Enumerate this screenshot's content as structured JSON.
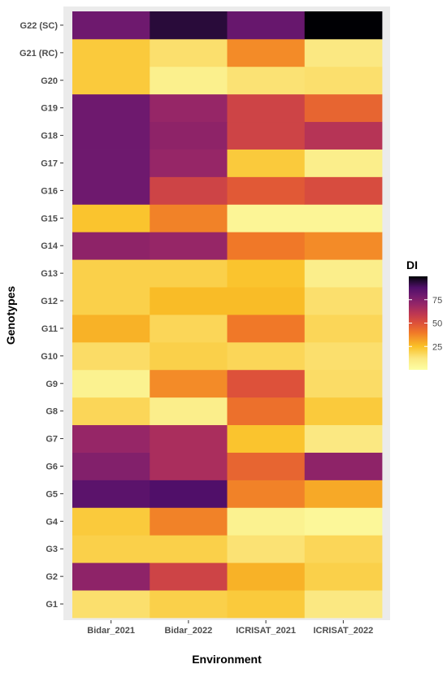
{
  "chart_data": {
    "type": "heatmap",
    "xlabel": "Environment",
    "ylabel": "Genotypes",
    "x_categories": [
      "Bidar_2021",
      "Bidar_2022",
      "ICRISAT_2021",
      "ICRISAT_2022"
    ],
    "y_categories": [
      "G1",
      "G2",
      "G3",
      "G4",
      "G5",
      "G6",
      "G7",
      "G8",
      "G9",
      "G10",
      "G11",
      "G12",
      "G13",
      "G14",
      "G15",
      "G16",
      "G17",
      "G18",
      "G19",
      "G20",
      "G21 (RC)",
      "G22 (SC)"
    ],
    "values": [
      [
        15,
        20,
        22,
        12
      ],
      [
        72,
        55,
        28,
        20
      ],
      [
        20,
        20,
        14,
        18
      ],
      [
        22,
        38,
        7,
        4
      ],
      [
        85,
        88,
        38,
        30
      ],
      [
        75,
        65,
        45,
        72
      ],
      [
        70,
        65,
        24,
        12
      ],
      [
        18,
        9,
        42,
        22
      ],
      [
        7,
        36,
        50,
        16
      ],
      [
        16,
        20,
        18,
        15
      ],
      [
        28,
        18,
        40,
        18
      ],
      [
        20,
        26,
        26,
        15
      ],
      [
        20,
        20,
        24,
        9
      ],
      [
        72,
        70,
        40,
        36
      ],
      [
        24,
        38,
        5,
        5
      ],
      [
        80,
        55,
        48,
        52
      ],
      [
        80,
        70,
        22,
        9
      ],
      [
        80,
        72,
        55,
        62
      ],
      [
        80,
        70,
        55,
        45
      ],
      [
        22,
        8,
        14,
        15
      ],
      [
        22,
        15,
        36,
        12
      ],
      [
        80,
        94,
        82,
        100
      ]
    ],
    "legend": {
      "title": "DI",
      "ticks": [
        25,
        50,
        75
      ],
      "range": [
        0,
        100
      ],
      "position": "right"
    },
    "colormap": "inferno-reversed",
    "panel_background": "#ebebeb"
  }
}
